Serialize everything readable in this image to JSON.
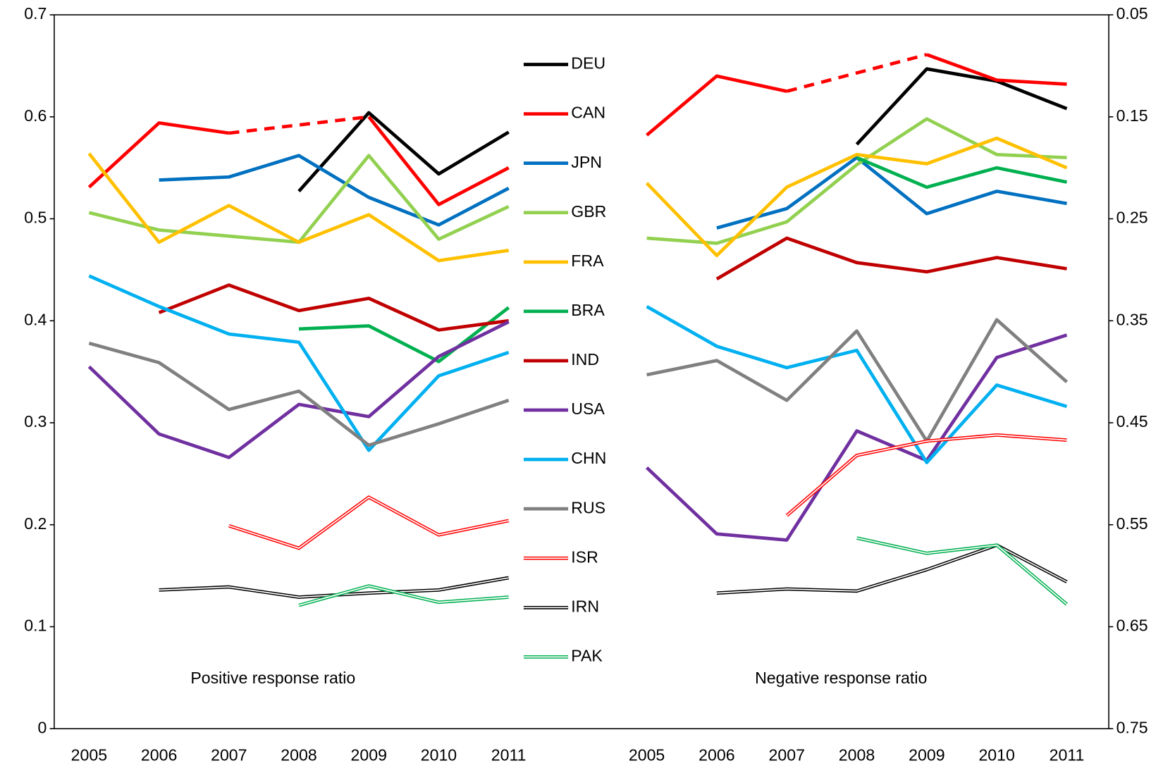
{
  "chart_data": [
    {
      "type": "line",
      "title": "Positive response ratio",
      "yaxis_position": "left",
      "categories": [
        "2005",
        "2006",
        "2007",
        "2008",
        "2009",
        "2010",
        "2011"
      ],
      "ylim": [
        0,
        0.7
      ],
      "yticks": [
        0,
        0.1,
        0.2,
        0.3,
        0.4,
        0.5,
        0.6,
        0.7
      ],
      "series": [
        {
          "name": "DEU",
          "color": "#000000",
          "values": [
            null,
            null,
            null,
            0.527,
            0.604,
            0.544,
            0.585
          ]
        },
        {
          "name": "CAN",
          "color": "#ff0000",
          "gap": "dashed",
          "values": [
            0.531,
            0.594,
            0.584,
            null,
            0.6,
            0.514,
            0.55
          ]
        },
        {
          "name": "JPN",
          "color": "#0070c0",
          "values": [
            null,
            0.538,
            0.541,
            0.562,
            0.521,
            0.494,
            0.53
          ]
        },
        {
          "name": "GBR",
          "color": "#92d050",
          "values": [
            0.506,
            0.489,
            0.483,
            0.477,
            0.562,
            0.48,
            0.512
          ]
        },
        {
          "name": "FRA",
          "color": "#ffc000",
          "values": [
            0.564,
            0.477,
            0.513,
            0.477,
            0.504,
            0.459,
            0.469
          ]
        },
        {
          "name": "BRA",
          "color": "#00b050",
          "values": [
            null,
            null,
            null,
            0.392,
            0.395,
            0.36,
            0.413
          ]
        },
        {
          "name": "IND",
          "color": "#c00000",
          "values": [
            null,
            0.408,
            0.435,
            0.41,
            0.422,
            0.391,
            0.4
          ]
        },
        {
          "name": "USA",
          "color": "#7030a0",
          "values": [
            0.355,
            0.289,
            0.266,
            0.318,
            0.306,
            0.365,
            0.399
          ]
        },
        {
          "name": "CHN",
          "color": "#00b0f0",
          "values": [
            0.444,
            0.414,
            0.387,
            0.379,
            0.273,
            0.346,
            0.369
          ]
        },
        {
          "name": "RUS",
          "color": "#808080",
          "values": [
            0.378,
            0.359,
            0.313,
            0.331,
            0.278,
            0.299,
            0.322
          ]
        },
        {
          "name": "ISR",
          "color": "#ff0000",
          "style": "double",
          "values": [
            null,
            null,
            0.199,
            0.177,
            0.227,
            0.19,
            0.204
          ]
        },
        {
          "name": "IRN",
          "color": "#000000",
          "style": "double",
          "values": [
            null,
            0.136,
            0.139,
            0.129,
            0.133,
            0.136,
            0.148
          ]
        },
        {
          "name": "PAK",
          "color": "#00b050",
          "style": "double",
          "values": [
            null,
            null,
            null,
            0.121,
            0.14,
            0.124,
            0.129
          ]
        }
      ]
    },
    {
      "type": "line",
      "title": "Negative response ratio",
      "yaxis_position": "right",
      "categories": [
        "2005",
        "2006",
        "2007",
        "2008",
        "2009",
        "2010",
        "2011"
      ],
      "ylim": [
        0.75,
        0.05
      ],
      "yticks": [
        0.75,
        0.65,
        0.55,
        0.45,
        0.35,
        0.25,
        0.15,
        0.05
      ],
      "series": [
        {
          "name": "DEU",
          "color": "#000000",
          "values": [
            null,
            null,
            null,
            0.177,
            0.103,
            0.115,
            0.142
          ]
        },
        {
          "name": "CAN",
          "color": "#ff0000",
          "gap": "dashed",
          "values": [
            0.168,
            0.11,
            0.125,
            null,
            0.089,
            0.114,
            0.118
          ]
        },
        {
          "name": "JPN",
          "color": "#0070c0",
          "values": [
            null,
            0.259,
            0.24,
            0.19,
            0.245,
            0.223,
            0.235
          ]
        },
        {
          "name": "GBR",
          "color": "#92d050",
          "values": [
            0.269,
            0.274,
            0.253,
            0.197,
            0.152,
            0.187,
            0.19
          ]
        },
        {
          "name": "FRA",
          "color": "#ffc000",
          "values": [
            0.215,
            0.286,
            0.219,
            0.187,
            0.196,
            0.171,
            0.2
          ]
        },
        {
          "name": "BRA",
          "color": "#00b050",
          "values": [
            null,
            null,
            null,
            0.19,
            0.219,
            0.2,
            0.214
          ]
        },
        {
          "name": "IND",
          "color": "#c00000",
          "values": [
            null,
            0.309,
            0.269,
            0.293,
            0.302,
            0.288,
            0.299
          ]
        },
        {
          "name": "USA",
          "color": "#7030a0",
          "values": [
            0.494,
            0.559,
            0.565,
            0.458,
            0.487,
            0.386,
            0.364
          ]
        },
        {
          "name": "CHN",
          "color": "#00b0f0",
          "values": [
            0.336,
            0.375,
            0.396,
            0.379,
            0.489,
            0.413,
            0.434
          ]
        },
        {
          "name": "RUS",
          "color": "#808080",
          "values": [
            0.403,
            0.389,
            0.428,
            0.36,
            0.468,
            0.349,
            0.41
          ]
        },
        {
          "name": "ISR",
          "color": "#ff0000",
          "style": "double",
          "values": [
            null,
            null,
            0.541,
            0.482,
            0.468,
            0.462,
            0.467
          ]
        },
        {
          "name": "IRN",
          "color": "#000000",
          "style": "double",
          "values": [
            null,
            0.617,
            0.613,
            0.615,
            0.594,
            0.57,
            0.606
          ]
        },
        {
          "name": "PAK",
          "color": "#00b050",
          "style": "double",
          "values": [
            null,
            null,
            null,
            0.563,
            0.578,
            0.57,
            0.628
          ]
        }
      ]
    }
  ]
}
